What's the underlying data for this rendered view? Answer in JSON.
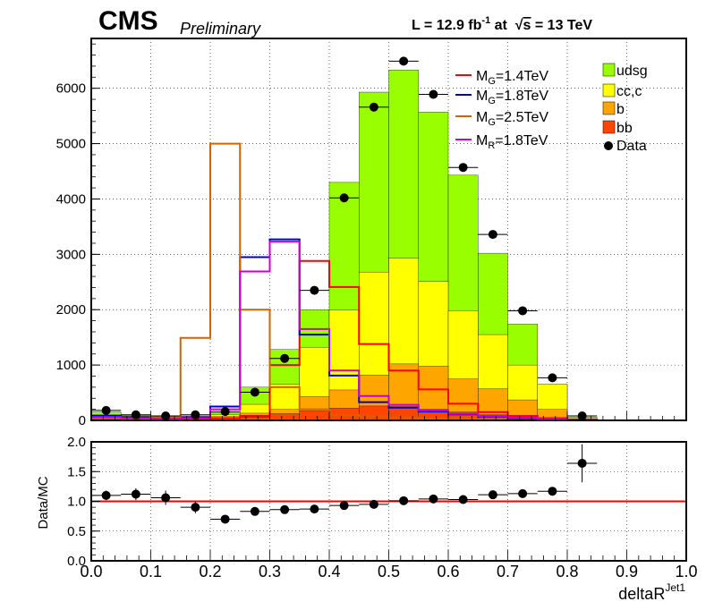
{
  "header": {
    "experiment": "CMS",
    "status": "Preliminary",
    "lumi_prefix": "L = 12.9 fb",
    "lumi_exp": "-1",
    "lumi_mid": " at  ",
    "sqrt": "√",
    "lumi_s": "s",
    "lumi_suffix": " = 13 TeV"
  },
  "colors": {
    "udsg": "#99ff00",
    "ccc": "#ffff00",
    "b": "#ffa500",
    "bb": "#ff4500",
    "mg14": "#ff0000",
    "mg18": "#0000cc",
    "mg25": "#cc6600",
    "mr18": "#cc00cc",
    "ratio_line": "#ff0000"
  },
  "chart_data": [
    {
      "type": "bar",
      "stacked": true,
      "x_edges": [
        0.0,
        0.05,
        0.1,
        0.15,
        0.2,
        0.25,
        0.3,
        0.35,
        0.4,
        0.45,
        0.5,
        0.55,
        0.6,
        0.65,
        0.7,
        0.75,
        0.8,
        0.85,
        0.9,
        0.95,
        1.0
      ],
      "xlim": [
        0.0,
        1.0
      ],
      "ylim": [
        0,
        6900
      ],
      "y_ticks": [
        0,
        1000,
        2000,
        3000,
        4000,
        5000,
        6000
      ],
      "grid": true,
      "legend_position": "top-right",
      "stack_series": [
        {
          "name": "bb",
          "color_key": "bb",
          "values": [
            20,
            15,
            12,
            15,
            30,
            60,
            120,
            170,
            220,
            260,
            250,
            200,
            150,
            100,
            60,
            30,
            10,
            0,
            0,
            0
          ]
        },
        {
          "name": "b",
          "color_key": "b",
          "values": [
            80,
            50,
            40,
            50,
            70,
            130,
            200,
            430,
            550,
            820,
            1020,
            980,
            750,
            570,
            370,
            200,
            20,
            0,
            0,
            0
          ]
        },
        {
          "name": "cc,c",
          "color_key": "ccc",
          "values": [
            100,
            70,
            60,
            70,
            100,
            290,
            650,
            1320,
            1990,
            2680,
            2930,
            2510,
            1980,
            1550,
            1000,
            650,
            30,
            0,
            0,
            0
          ]
        },
        {
          "name": "udsg",
          "color_key": "udsg",
          "values": [
            150,
            90,
            70,
            80,
            140,
            600,
            1280,
            2000,
            4300,
            5930,
            6330,
            5570,
            4430,
            3020,
            1740,
            650,
            60,
            0,
            0,
            0
          ]
        }
      ],
      "signal_series": [
        {
          "name": "M_G=1.4TeV",
          "color_key": "mg14",
          "values": [
            50,
            30,
            20,
            30,
            40,
            80,
            1000,
            2880,
            2410,
            1380,
            900,
            560,
            300,
            150,
            80,
            40,
            10,
            0,
            0,
            0
          ]
        },
        {
          "name": "M_G=1.8TeV",
          "color_key": "mg18",
          "values": [
            80,
            60,
            40,
            50,
            250,
            2950,
            3270,
            1550,
            810,
            330,
            230,
            160,
            110,
            70,
            40,
            20,
            5,
            0,
            0,
            0
          ]
        },
        {
          "name": "M_G=2.5TeV",
          "color_key": "mg25",
          "values": [
            50,
            30,
            60,
            1490,
            5000,
            2000,
            600,
            200,
            100,
            70,
            50,
            30,
            20,
            10,
            5,
            0,
            0,
            0,
            0,
            0
          ]
        },
        {
          "name": "M_R=1.8TeV",
          "color_key": "mr18",
          "values": [
            60,
            40,
            30,
            40,
            200,
            2690,
            3230,
            1650,
            900,
            440,
            280,
            180,
            120,
            80,
            50,
            25,
            5,
            0,
            0,
            0
          ]
        }
      ],
      "data_points": {
        "name": "Data",
        "x": [
          0.025,
          0.075,
          0.125,
          0.175,
          0.225,
          0.275,
          0.325,
          0.375,
          0.425,
          0.475,
          0.525,
          0.575,
          0.625,
          0.675,
          0.725,
          0.775,
          0.825
        ],
        "y": [
          180,
          100,
          80,
          100,
          160,
          510,
          1120,
          2350,
          4020,
          5660,
          6490,
          5890,
          4570,
          3360,
          1980,
          770,
          80
        ]
      }
    },
    {
      "type": "scatter",
      "ylabel": "Data/MC",
      "xlabel": "deltaR",
      "xlabel_sup": "Jet1",
      "xlim": [
        0.0,
        1.0
      ],
      "ylim": [
        0.0,
        2.0
      ],
      "x_ticks": [
        "0.0",
        "0.1",
        "0.2",
        "0.3",
        "0.4",
        "0.5",
        "0.6",
        "0.7",
        "0.8",
        "0.9",
        "1.0"
      ],
      "y_ticks": [
        "0.0",
        "0.5",
        "1.0",
        "1.5",
        "2.0"
      ],
      "reference_line": 1.0,
      "grid": true,
      "x": [
        0.025,
        0.075,
        0.125,
        0.175,
        0.225,
        0.275,
        0.325,
        0.375,
        0.425,
        0.475,
        0.525,
        0.575,
        0.625,
        0.675,
        0.725,
        0.775,
        0.825
      ],
      "y": [
        1.1,
        1.12,
        1.06,
        0.9,
        0.7,
        0.83,
        0.86,
        0.87,
        0.93,
        0.95,
        1.01,
        1.04,
        1.03,
        1.11,
        1.13,
        1.17,
        1.64
      ],
      "y_err": [
        0.08,
        0.1,
        0.12,
        0.1,
        0.05,
        0.04,
        0.03,
        0.03,
        0.02,
        0.02,
        0.02,
        0.02,
        0.02,
        0.03,
        0.03,
        0.05,
        0.32
      ]
    }
  ]
}
